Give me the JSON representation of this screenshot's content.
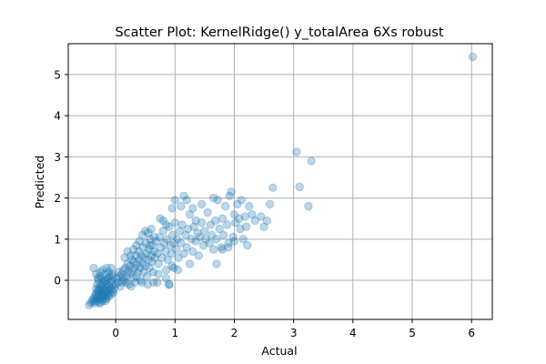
{
  "chart_data": {
    "type": "scatter",
    "title": "Scatter Plot: KernelRidge() y_totalArea 6Xs robust",
    "xlabel": "Actual",
    "ylabel": "Predicted",
    "xlim": [
      -0.8,
      6.35
    ],
    "ylim": [
      -0.95,
      5.75
    ],
    "xticks": [
      0,
      1,
      2,
      3,
      4,
      5,
      6
    ],
    "yticks": [
      0,
      1,
      2,
      3,
      4,
      5
    ],
    "grid": true,
    "marker_color": "#1f77b4",
    "marker_alpha": 0.3,
    "series": [
      {
        "points": [
          [
            -0.45,
            -0.6
          ],
          [
            -0.42,
            -0.55
          ],
          [
            -0.4,
            -0.5
          ],
          [
            -0.38,
            -0.45
          ],
          [
            -0.36,
            -0.5
          ],
          [
            -0.35,
            -0.4
          ],
          [
            -0.34,
            -0.35
          ],
          [
            -0.33,
            -0.45
          ],
          [
            -0.32,
            -0.3
          ],
          [
            -0.31,
            -0.5
          ],
          [
            -0.3,
            -0.25
          ],
          [
            -0.3,
            -0.4
          ],
          [
            -0.29,
            -0.35
          ],
          [
            -0.28,
            -0.2
          ],
          [
            -0.28,
            -0.55
          ],
          [
            -0.27,
            -0.3
          ],
          [
            -0.26,
            -0.15
          ],
          [
            -0.26,
            -0.45
          ],
          [
            -0.25,
            -0.25
          ],
          [
            -0.24,
            -0.35
          ],
          [
            -0.24,
            -0.1
          ],
          [
            -0.23,
            -0.4
          ],
          [
            -0.22,
            -0.2
          ],
          [
            -0.22,
            -0.5
          ],
          [
            -0.21,
            -0.3
          ],
          [
            -0.2,
            -0.05
          ],
          [
            -0.2,
            -0.35
          ],
          [
            -0.19,
            -0.15
          ],
          [
            -0.18,
            -0.4
          ],
          [
            -0.18,
            -0.25
          ],
          [
            -0.17,
            0.0
          ],
          [
            -0.16,
            -0.3
          ],
          [
            -0.16,
            -0.45
          ],
          [
            -0.15,
            -0.1
          ],
          [
            -0.14,
            -0.2
          ],
          [
            -0.14,
            -0.35
          ],
          [
            -0.13,
            0.05
          ],
          [
            -0.12,
            -0.25
          ],
          [
            -0.12,
            -0.4
          ],
          [
            -0.11,
            -0.15
          ],
          [
            -0.1,
            0.1
          ],
          [
            -0.1,
            -0.3
          ],
          [
            -0.09,
            -0.05
          ],
          [
            -0.08,
            -0.2
          ],
          [
            -0.08,
            -0.35
          ],
          [
            -0.07,
            0.0
          ],
          [
            -0.06,
            -0.25
          ],
          [
            -0.06,
            0.15
          ],
          [
            -0.05,
            -0.1
          ],
          [
            -0.04,
            -0.3
          ],
          [
            -0.35,
            -0.55
          ],
          [
            -0.33,
            -0.2
          ],
          [
            -0.31,
            -0.1
          ],
          [
            -0.29,
            0.0
          ],
          [
            -0.27,
            0.1
          ],
          [
            -0.25,
            -0.55
          ],
          [
            -0.23,
            0.05
          ],
          [
            -0.21,
            -0.45
          ],
          [
            -0.19,
            0.0
          ],
          [
            -0.17,
            -0.5
          ],
          [
            -0.37,
            0.3
          ],
          [
            -0.33,
            0.15
          ],
          [
            -0.3,
            0.05
          ],
          [
            -0.26,
            0.2
          ],
          [
            -0.22,
            0.25
          ],
          [
            -0.18,
            0.15
          ],
          [
            -0.15,
            0.3
          ],
          [
            -0.12,
            0.2
          ],
          [
            -0.08,
            0.3
          ],
          [
            -0.05,
            0.1
          ],
          [
            -0.02,
            -0.2
          ],
          [
            0.0,
            -0.1
          ],
          [
            0.02,
            0.05
          ],
          [
            0.04,
            -0.05
          ],
          [
            0.05,
            0.2
          ],
          [
            0.06,
            0.1
          ],
          [
            0.08,
            -0.15
          ],
          [
            0.1,
            0.15
          ],
          [
            0.12,
            0.05
          ],
          [
            0.13,
            0.25
          ],
          [
            0.15,
            0.0
          ],
          [
            0.16,
            0.3
          ],
          [
            0.18,
            0.1
          ],
          [
            0.2,
            0.4
          ],
          [
            0.21,
            0.2
          ],
          [
            0.22,
            -0.1
          ],
          [
            0.24,
            0.35
          ],
          [
            0.25,
            0.15
          ],
          [
            0.27,
            0.5
          ],
          [
            0.28,
            0.25
          ],
          [
            0.3,
            0.05
          ],
          [
            0.31,
            0.45
          ],
          [
            0.32,
            0.3
          ],
          [
            0.34,
            0.6
          ],
          [
            0.35,
            0.1
          ],
          [
            0.36,
            0.4
          ],
          [
            0.38,
            0.2
          ],
          [
            0.39,
            0.7
          ],
          [
            0.4,
            0.5
          ],
          [
            0.41,
            0.3
          ],
          [
            0.42,
            0.0
          ],
          [
            0.43,
            0.6
          ],
          [
            0.45,
            0.4
          ],
          [
            0.46,
            0.8
          ],
          [
            0.47,
            0.2
          ],
          [
            0.48,
            0.55
          ],
          [
            0.5,
            0.35
          ],
          [
            0.51,
            0.9
          ],
          [
            0.52,
            0.65
          ],
          [
            0.53,
            0.1
          ],
          [
            0.55,
            0.5
          ],
          [
            0.56,
            0.75
          ],
          [
            0.57,
            0.3
          ],
          [
            0.58,
            1.0
          ],
          [
            0.6,
            0.6
          ],
          [
            0.61,
            0.45
          ],
          [
            0.62,
            0.85
          ],
          [
            0.63,
            0.2
          ],
          [
            0.65,
            0.7
          ],
          [
            0.66,
            0.55
          ],
          [
            0.15,
            0.55
          ],
          [
            0.2,
            0.7
          ],
          [
            0.25,
            0.6
          ],
          [
            0.3,
            0.75
          ],
          [
            0.35,
            0.85
          ],
          [
            0.45,
            1.1
          ],
          [
            0.5,
            1.2
          ],
          [
            0.55,
            1.15
          ],
          [
            0.4,
            0.95
          ],
          [
            0.6,
            1.25
          ],
          [
            0.1,
            -0.05
          ],
          [
            0.18,
            -0.05
          ],
          [
            0.26,
            -0.15
          ],
          [
            0.33,
            -0.05
          ],
          [
            0.44,
            -0.05
          ],
          [
            0.54,
            -0.1
          ],
          [
            0.64,
            -0.05
          ],
          [
            0.7,
            -0.05
          ],
          [
            0.85,
            0.05
          ],
          [
            0.9,
            -0.1
          ],
          [
            0.68,
            0.95
          ],
          [
            0.7,
            0.65
          ],
          [
            0.72,
            0.4
          ],
          [
            0.74,
            1.05
          ],
          [
            0.76,
            0.8
          ],
          [
            0.78,
            0.55
          ],
          [
            0.8,
            1.2
          ],
          [
            0.82,
            0.9
          ],
          [
            0.84,
            0.7
          ],
          [
            0.86,
            1.0
          ],
          [
            0.88,
            0.5
          ],
          [
            0.9,
            1.3
          ],
          [
            0.92,
            0.85
          ],
          [
            0.94,
            0.65
          ],
          [
            0.96,
            1.1
          ],
          [
            0.98,
            0.9
          ],
          [
            1.0,
            1.4
          ],
          [
            1.02,
            0.75
          ],
          [
            1.04,
            1.0
          ],
          [
            1.06,
            0.55
          ],
          [
            0.75,
            1.5
          ],
          [
            0.8,
            1.45
          ],
          [
            0.85,
            1.35
          ],
          [
            0.95,
            1.75
          ],
          [
            1.1,
            1.8
          ],
          [
            1.15,
            2.05
          ],
          [
            1.2,
            1.95
          ],
          [
            1.25,
            1.6
          ],
          [
            1.3,
            1.75
          ],
          [
            1.35,
            1.45
          ],
          [
            1.08,
            1.2
          ],
          [
            1.1,
            0.9
          ],
          [
            1.12,
            1.35
          ],
          [
            1.15,
            0.65
          ],
          [
            1.18,
            1.1
          ],
          [
            1.2,
            0.8
          ],
          [
            1.22,
            1.25
          ],
          [
            1.25,
            0.4
          ],
          [
            1.28,
            1.0
          ],
          [
            1.3,
            0.7
          ],
          [
            1.32,
            1.3
          ],
          [
            1.35,
            0.95
          ],
          [
            1.38,
            1.15
          ],
          [
            1.4,
            0.6
          ],
          [
            1.42,
            1.05
          ],
          [
            1.45,
            1.4
          ],
          [
            1.48,
            0.85
          ],
          [
            1.5,
            1.2
          ],
          [
            1.52,
            1.0
          ],
          [
            1.55,
            1.65
          ],
          [
            1.58,
            0.9
          ],
          [
            1.6,
            1.35
          ],
          [
            1.62,
            1.1
          ],
          [
            1.65,
            0.75
          ],
          [
            1.68,
            1.45
          ],
          [
            1.7,
            1.0
          ],
          [
            1.72,
            1.95
          ],
          [
            1.75,
            1.25
          ],
          [
            1.78,
            0.8
          ],
          [
            1.8,
            1.5
          ],
          [
            1.82,
            1.1
          ],
          [
            1.85,
            1.8
          ],
          [
            1.88,
            1.35
          ],
          [
            1.9,
            0.9
          ],
          [
            1.92,
            2.05
          ],
          [
            1.95,
            2.15
          ],
          [
            1.98,
            1.05
          ],
          [
            2.0,
            1.6
          ],
          [
            2.02,
            1.4
          ],
          [
            2.05,
            1.85
          ],
          [
            2.08,
            1.5
          ],
          [
            2.1,
            1.25
          ],
          [
            2.12,
            1.95
          ],
          [
            2.15,
            1.0
          ],
          [
            2.18,
            1.55
          ],
          [
            2.2,
            1.3
          ],
          [
            2.22,
            0.85
          ],
          [
            2.25,
            1.8
          ],
          [
            2.3,
            1.6
          ],
          [
            2.35,
            1.45
          ],
          [
            2.45,
            1.55
          ],
          [
            2.5,
            1.3
          ],
          [
            2.55,
            1.45
          ],
          [
            2.6,
            1.85
          ],
          [
            2.65,
            2.25
          ],
          [
            1.65,
            2.0
          ],
          [
            1.45,
            1.85
          ],
          [
            1.0,
            1.95
          ],
          [
            0.95,
            0.35
          ],
          [
            0.9,
            -0.1
          ],
          [
            0.72,
            0.15
          ],
          [
            0.85,
            0.25
          ],
          [
            0.98,
            0.3
          ],
          [
            1.05,
            0.25
          ],
          [
            1.7,
            0.4
          ],
          [
            1.8,
            0.75
          ],
          [
            1.9,
            0.8
          ],
          [
            2.0,
            0.95
          ],
          [
            0.65,
            1.05
          ],
          [
            0.58,
            0.85
          ],
          [
            3.05,
            3.12
          ],
          [
            3.3,
            2.9
          ],
          [
            3.1,
            2.27
          ],
          [
            3.25,
            1.8
          ],
          [
            6.02,
            5.43
          ]
        ]
      }
    ]
  }
}
